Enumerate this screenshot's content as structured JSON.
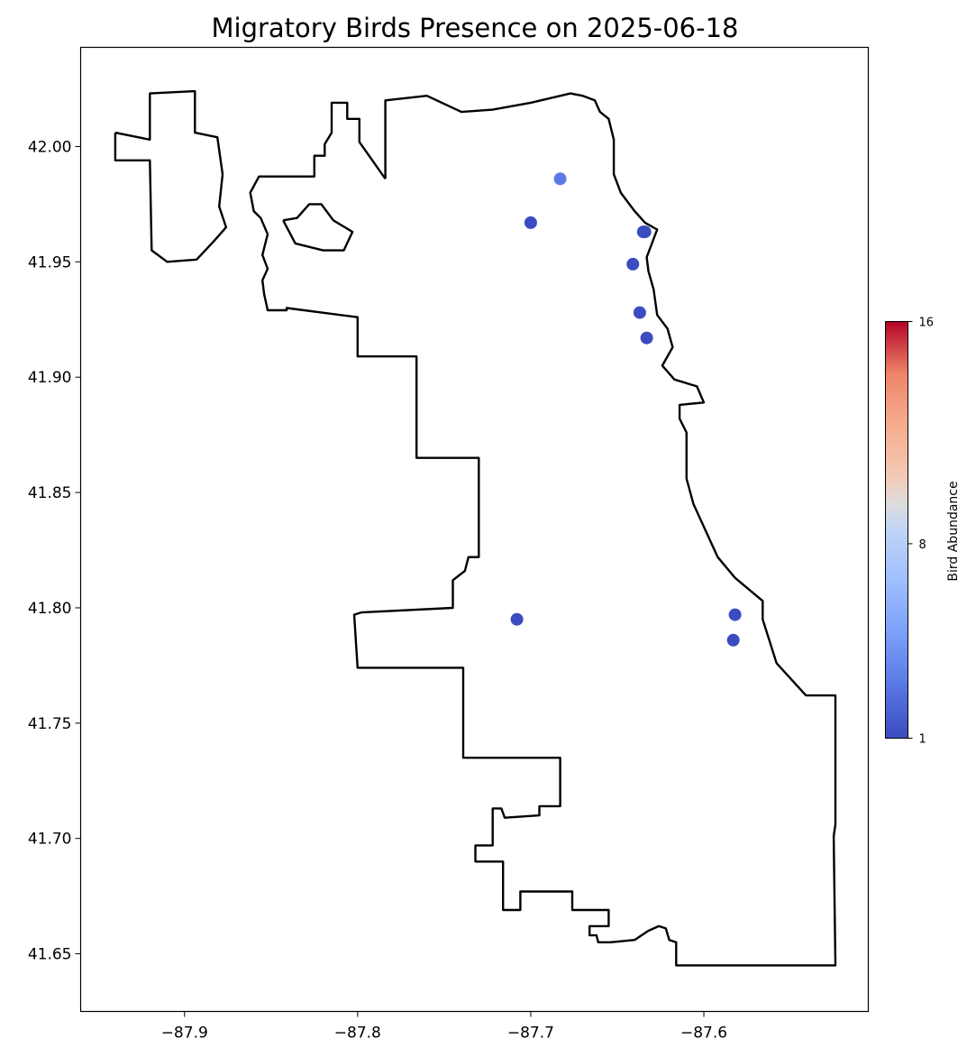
{
  "chart_data": {
    "type": "scatter",
    "title": "Migratory Birds Presence on 2025-06-18",
    "xlabel": "",
    "ylabel": "",
    "xlim": [
      -87.96,
      -87.505
    ],
    "ylim": [
      41.625,
      42.043
    ],
    "x_ticks": [
      -87.9,
      -87.8,
      -87.7,
      -87.6
    ],
    "x_tick_labels": [
      "−87.9",
      "−87.8",
      "−87.7",
      "−87.6"
    ],
    "y_ticks": [
      41.65,
      41.7,
      41.75,
      41.8,
      41.85,
      41.9,
      41.95,
      42.0
    ],
    "y_tick_labels": [
      "41.65",
      "41.70",
      "41.75",
      "41.80",
      "41.85",
      "41.90",
      "41.95",
      "42.00"
    ],
    "grid": false,
    "points": [
      {
        "x": -87.683,
        "y": 41.986,
        "value": 3
      },
      {
        "x": -87.7,
        "y": 41.967,
        "value": 1
      },
      {
        "x": -87.635,
        "y": 41.963,
        "value": 1
      },
      {
        "x": -87.634,
        "y": 41.963,
        "value": 1
      },
      {
        "x": -87.641,
        "y": 41.949,
        "value": 1
      },
      {
        "x": -87.637,
        "y": 41.928,
        "value": 1
      },
      {
        "x": -87.633,
        "y": 41.917,
        "value": 1
      },
      {
        "x": -87.708,
        "y": 41.795,
        "value": 1
      },
      {
        "x": -87.582,
        "y": 41.797,
        "value": 1
      },
      {
        "x": -87.583,
        "y": 41.786,
        "value": 1
      }
    ],
    "colorbar": {
      "label": "Bird Abundance",
      "colormap": "coolwarm",
      "min": 1,
      "max": 16,
      "ticks": [
        1,
        8,
        16
      ],
      "tick_labels": [
        "1",
        "8",
        "16"
      ],
      "position": "right"
    },
    "boundary": {
      "name": "Chicago city limits",
      "color": "#000000",
      "main": [
        [
          -87.784,
          41.986
        ],
        [
          -87.784,
          42.02
        ],
        [
          -87.76,
          42.022
        ],
        [
          -87.74,
          42.015
        ],
        [
          -87.722,
          42.016
        ],
        [
          -87.7,
          42.019
        ],
        [
          -87.677,
          42.023
        ],
        [
          -87.67,
          42.022
        ],
        [
          -87.663,
          42.02
        ],
        [
          -87.66,
          42.015
        ],
        [
          -87.655,
          42.012
        ],
        [
          -87.652,
          42.003
        ],
        [
          -87.652,
          41.988
        ],
        [
          -87.648,
          41.98
        ],
        [
          -87.64,
          41.972
        ],
        [
          -87.634,
          41.967
        ],
        [
          -87.627,
          41.964
        ],
        [
          -87.63,
          41.958
        ],
        [
          -87.633,
          41.952
        ],
        [
          -87.632,
          41.946
        ],
        [
          -87.629,
          41.938
        ],
        [
          -87.627,
          41.927
        ],
        [
          -87.621,
          41.921
        ],
        [
          -87.618,
          41.913
        ],
        [
          -87.624,
          41.905
        ],
        [
          -87.617,
          41.899
        ],
        [
          -87.604,
          41.896
        ],
        [
          -87.6,
          41.889
        ],
        [
          -87.614,
          41.888
        ],
        [
          -87.614,
          41.882
        ],
        [
          -87.61,
          41.876
        ],
        [
          -87.61,
          41.856
        ],
        [
          -87.606,
          41.845
        ],
        [
          -87.592,
          41.822
        ],
        [
          -87.582,
          41.813
        ],
        [
          -87.566,
          41.803
        ],
        [
          -87.566,
          41.795
        ],
        [
          -87.558,
          41.776
        ],
        [
          -87.541,
          41.762
        ],
        [
          -87.524,
          41.762
        ],
        [
          -87.524,
          41.706
        ],
        [
          -87.525,
          41.701
        ],
        [
          -87.524,
          41.645
        ],
        [
          -87.616,
          41.645
        ],
        [
          -87.616,
          41.655
        ],
        [
          -87.62,
          41.656
        ],
        [
          -87.622,
          41.661
        ],
        [
          -87.626,
          41.662
        ],
        [
          -87.632,
          41.66
        ],
        [
          -87.64,
          41.656
        ],
        [
          -87.654,
          41.655
        ],
        [
          -87.661,
          41.655
        ],
        [
          -87.662,
          41.658
        ],
        [
          -87.666,
          41.658
        ],
        [
          -87.666,
          41.662
        ],
        [
          -87.655,
          41.662
        ],
        [
          -87.655,
          41.669
        ],
        [
          -87.676,
          41.669
        ],
        [
          -87.676,
          41.677
        ],
        [
          -87.706,
          41.677
        ],
        [
          -87.706,
          41.669
        ],
        [
          -87.716,
          41.669
        ],
        [
          -87.716,
          41.69
        ],
        [
          -87.732,
          41.69
        ],
        [
          -87.732,
          41.697
        ],
        [
          -87.722,
          41.697
        ],
        [
          -87.722,
          41.713
        ],
        [
          -87.717,
          41.713
        ],
        [
          -87.715,
          41.709
        ],
        [
          -87.695,
          41.71
        ],
        [
          -87.695,
          41.714
        ],
        [
          -87.683,
          41.714
        ],
        [
          -87.683,
          41.735
        ],
        [
          -87.739,
          41.735
        ],
        [
          -87.739,
          41.774
        ],
        [
          -87.8,
          41.774
        ],
        [
          -87.802,
          41.797
        ],
        [
          -87.798,
          41.798
        ],
        [
          -87.745,
          41.8
        ],
        [
          -87.745,
          41.812
        ],
        [
          -87.738,
          41.816
        ],
        [
          -87.736,
          41.822
        ],
        [
          -87.73,
          41.822
        ],
        [
          -87.73,
          41.865
        ],
        [
          -87.766,
          41.865
        ],
        [
          -87.766,
          41.909
        ],
        [
          -87.8,
          41.909
        ],
        [
          -87.8,
          41.926
        ],
        [
          -87.841,
          41.93
        ],
        [
          -87.841,
          41.929
        ],
        [
          -87.852,
          41.929
        ],
        [
          -87.854,
          41.936
        ],
        [
          -87.855,
          41.942
        ],
        [
          -87.852,
          41.947
        ],
        [
          -87.855,
          41.953
        ],
        [
          -87.852,
          41.962
        ],
        [
          -87.856,
          41.969
        ],
        [
          -87.86,
          41.972
        ],
        [
          -87.862,
          41.98
        ],
        [
          -87.857,
          41.987
        ],
        [
          -87.825,
          41.987
        ],
        [
          -87.825,
          41.996
        ],
        [
          -87.819,
          41.996
        ],
        [
          -87.819,
          42.001
        ],
        [
          -87.815,
          42.006
        ],
        [
          -87.815,
          42.019
        ],
        [
          -87.806,
          42.019
        ],
        [
          -87.806,
          42.012
        ],
        [
          -87.799,
          42.012
        ],
        [
          -87.799,
          42.002
        ],
        [
          -87.784,
          41.986
        ]
      ],
      "inner": [
        [
          -87.843,
          41.968
        ],
        [
          -87.835,
          41.969
        ],
        [
          -87.828,
          41.975
        ],
        [
          -87.821,
          41.975
        ],
        [
          -87.814,
          41.968
        ],
        [
          -87.803,
          41.963
        ],
        [
          -87.808,
          41.955
        ],
        [
          -87.82,
          41.955
        ],
        [
          -87.836,
          41.958
        ],
        [
          -87.843,
          41.968
        ]
      ],
      "west": [
        [
          -87.94,
          42.006
        ],
        [
          -87.92,
          42.003
        ],
        [
          -87.92,
          42.023
        ],
        [
          -87.894,
          42.024
        ],
        [
          -87.894,
          42.006
        ],
        [
          -87.881,
          42.004
        ],
        [
          -87.878,
          41.988
        ],
        [
          -87.88,
          41.974
        ],
        [
          -87.876,
          41.965
        ],
        [
          -87.883,
          41.959
        ],
        [
          -87.893,
          41.951
        ],
        [
          -87.91,
          41.95
        ],
        [
          -87.919,
          41.955
        ],
        [
          -87.92,
          41.994
        ],
        [
          -87.94,
          41.994
        ],
        [
          -87.94,
          42.006
        ]
      ]
    }
  }
}
